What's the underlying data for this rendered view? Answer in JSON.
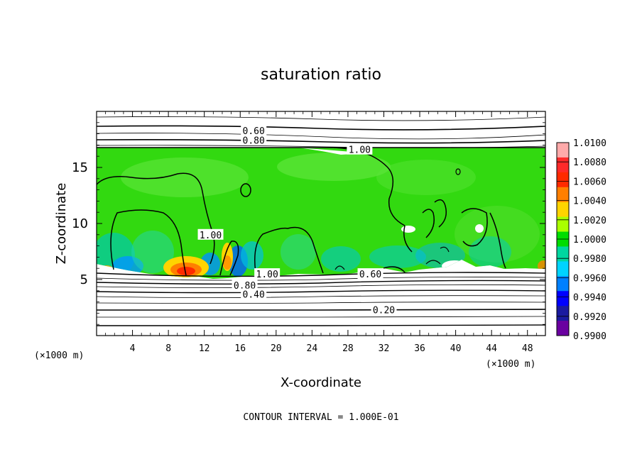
{
  "chart_data": {
    "type": "heatmap",
    "title": "saturation ratio",
    "xlabel": "X-coordinate",
    "ylabel": "Z-coordinate",
    "x_unit": "(×1000 m)",
    "z_unit": "(×1000 m)",
    "xlim": [
      0,
      50
    ],
    "ylim": [
      0,
      20
    ],
    "x_ticks": [
      4,
      8,
      12,
      16,
      20,
      24,
      28,
      32,
      36,
      40,
      44,
      48
    ],
    "y_ticks": [
      5,
      10,
      15
    ],
    "colorbar": {
      "min": 0.99,
      "max": 1.01,
      "labels": [
        "1.0100",
        "1.0080",
        "1.0060",
        "1.0040",
        "1.0020",
        "1.0000",
        "0.9980",
        "0.9960",
        "0.9940",
        "0.9920",
        "0.9900"
      ],
      "colors": [
        "#ffaaaa",
        "#ff2a2a",
        "#ff2a00",
        "#ff7f00",
        "#ffd400",
        "#aaff00",
        "#00dd00",
        "#00d7a0",
        "#00d4ff",
        "#0080ff",
        "#0000ff",
        "#1a1aa0",
        "#6a00a0"
      ]
    },
    "contour_labels": [
      {
        "text": "0.60",
        "x": 17.5,
        "z": 18.3
      },
      {
        "text": "0.80",
        "x": 17.5,
        "z": 17.45
      },
      {
        "text": "1.00",
        "x": 29.3,
        "z": 16.6
      },
      {
        "text": "1.00",
        "x": 12.7,
        "z": 9.0
      },
      {
        "text": "1.00",
        "x": 19.0,
        "z": 5.5
      },
      {
        "text": "0.80",
        "x": 16.5,
        "z": 4.5
      },
      {
        "text": "0.40",
        "x": 17.5,
        "z": 3.7
      },
      {
        "text": "0.20",
        "x": 32.0,
        "z": 2.3
      },
      {
        "text": "0.60",
        "x": 30.5,
        "z": 5.5
      }
    ],
    "grid": false
  },
  "contour_interval": "CONTOUR INTERVAL = 1.000E-01"
}
